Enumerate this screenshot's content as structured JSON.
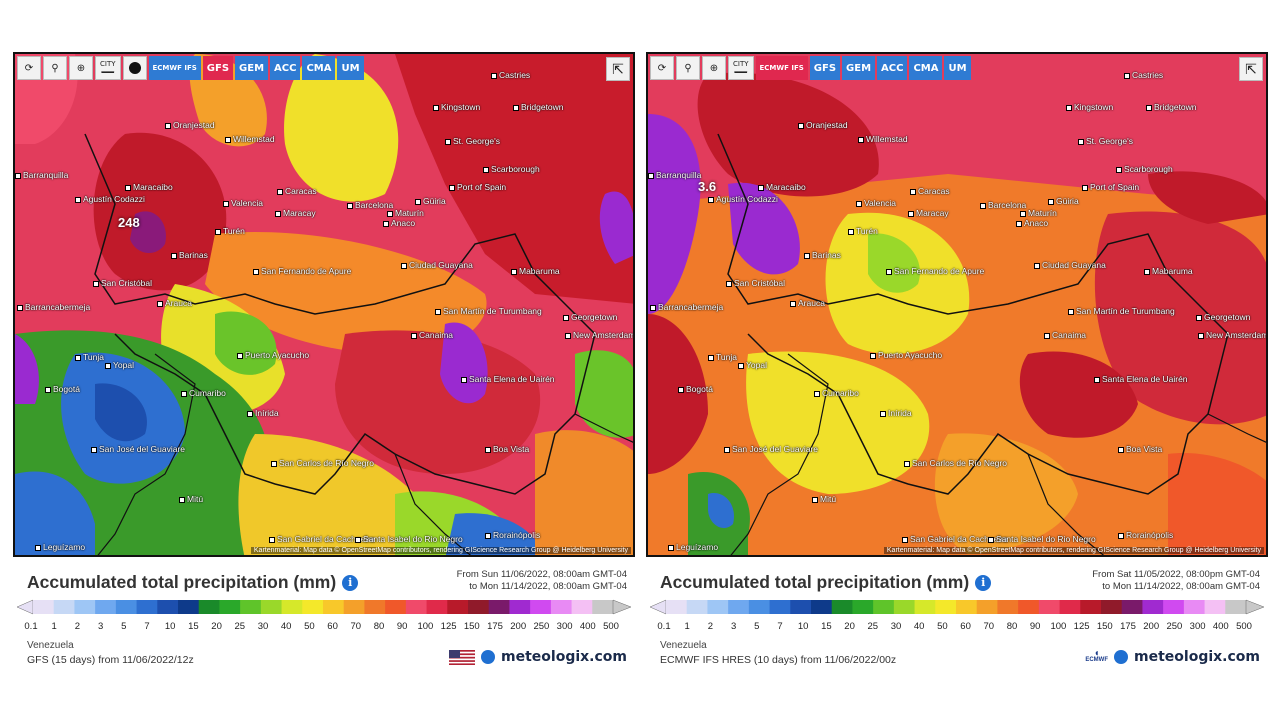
{
  "panels": [
    {
      "id": "gfs",
      "toolbar": {
        "refresh_icon": "refresh-icon",
        "location_icon": "map-pin-icon",
        "zoom_icon": "zoom-icon",
        "city_label": "CITY",
        "dot_icon": "black-dot-icon",
        "models": [
          {
            "label": "ECMWF IFS",
            "active": false
          },
          {
            "label": "GFS",
            "active": true
          },
          {
            "label": "GEM",
            "active": false
          },
          {
            "label": "ACC",
            "active": false
          },
          {
            "label": "CMA",
            "active": false
          },
          {
            "label": "UM",
            "active": false
          }
        ]
      },
      "max_value": "248",
      "cities": [
        "Castries",
        "Kingstown",
        "Bridgetown",
        "Oranjestad",
        "Willemstad",
        "St. George's",
        "Scarborough",
        "Barranquilla",
        "Maracaibo",
        "Caracas",
        "Port of Spain",
        "Agustín Codazzi",
        "Valencia",
        "Maracay",
        "Barcelona",
        "Güiria",
        "Maturín",
        "Turén",
        "Anaco",
        "Barinas",
        "Ciudad Guayana",
        "San Fernando de Apure",
        "Mabaruma",
        "San Cristóbal",
        "Arauca",
        "Barrancabermeja",
        "San Martín de Turumbang",
        "Georgetown",
        "New Amsterdam",
        "Canaima",
        "Puerto Ayacucho",
        "Tunja",
        "Yopal",
        "Santa Elena de Uairén",
        "Bogotá",
        "Cumaribo",
        "Inírida",
        "San José del Guaviare",
        "Boa Vista",
        "San Carlos de Río Negro",
        "Mitú",
        "Rorainópolis",
        "San Gabriel da Cachoeira",
        "Santa Isabel do Rio Negro",
        "Leguízamo"
      ],
      "attribution": "Kartenmaterial: Map data © OpenStreetMap contributors, rendering GIScience Research Group @ Heidelberg University",
      "title": "Accumulated total precipitation (mm)",
      "date_from": "From Sun 11/06/2022, 08:00am GMT-04",
      "date_to": "to Mon 11/14/2022, 08:00am GMT-04",
      "region": "Venezuela",
      "model_line": "GFS (15 days) from 11/06/2022/12z",
      "brand": "meteologix.com",
      "logo": "us-flag"
    },
    {
      "id": "ecmwf",
      "toolbar": {
        "refresh_icon": "refresh-icon",
        "location_icon": "map-pin-icon",
        "zoom_icon": "zoom-icon",
        "city_label": "CITY",
        "models": [
          {
            "label": "ECMWF IFS",
            "active": true
          },
          {
            "label": "GFS",
            "active": false
          },
          {
            "label": "GEM",
            "active": false
          },
          {
            "label": "ACC",
            "active": false
          },
          {
            "label": "CMA",
            "active": false
          },
          {
            "label": "UM",
            "active": false
          }
        ]
      },
      "max_value": "3.6",
      "cities": [
        "Castries",
        "Kingstown",
        "Bridgetown",
        "Oranjestad",
        "Willemstad",
        "St. George's",
        "Scarborough",
        "Barranquilla",
        "Maracaibo",
        "Caracas",
        "Port of Spain",
        "Agustín Codazzi",
        "Valencia",
        "Maracay",
        "Barcelona",
        "Güiria",
        "Maturín",
        "Turén",
        "Anaco",
        "Barinas",
        "Ciudad Guayana",
        "San Fernando de Apure",
        "Mabaruma",
        "San Cristóbal",
        "Arauca",
        "Barrancabermeja",
        "San Martín de Turumbang",
        "Georgetown",
        "New Amsterdam",
        "Canaima",
        "Puerto Ayacucho",
        "Tunja",
        "Yopal",
        "Santa Elena de Uairén",
        "Bogotá",
        "Cumaribo",
        "Inírida",
        "San José del Guaviare",
        "Boa Vista",
        "San Carlos de Río Negro",
        "Mitú",
        "Rorainópolis",
        "San Gabriel da Cachoeira",
        "Santa Isabel do Rio Negro",
        "Leguízamo"
      ],
      "attribution": "Kartenmaterial: Map data © OpenStreetMap contributors, rendering GIScience Research Group @ Heidelberg University",
      "title": "Accumulated total precipitation (mm)",
      "date_from": "From Sat 11/05/2022, 08:00pm GMT-04",
      "date_to": "to Mon 11/14/2022, 08:00am GMT-04",
      "region": "Venezuela",
      "model_line": "ECMWF IFS HRES (10 days) from 11/06/2022/00z",
      "brand": "meteologix.com",
      "logo_text": "ECMWF"
    }
  ],
  "legend": {
    "ticks": [
      "0.1",
      "1",
      "2",
      "3",
      "5",
      "7",
      "10",
      "15",
      "20",
      "25",
      "30",
      "40",
      "50",
      "60",
      "70",
      "80",
      "90",
      "100",
      "125",
      "150",
      "175",
      "200",
      "250",
      "300",
      "400",
      "500"
    ],
    "colors": [
      "#e6e0f5",
      "#c6d8f5",
      "#9ec6f5",
      "#6fa8ef",
      "#4a8fe3",
      "#2e6fd0",
      "#1d4fae",
      "#0e3a8a",
      "#1a8a2a",
      "#2aa82a",
      "#5fc42a",
      "#9ad82a",
      "#d6e82a",
      "#f4e82a",
      "#f8c82a",
      "#f4a02a",
      "#f0782a",
      "#f0582a",
      "#f04a6a",
      "#e02a4a",
      "#b81a2a",
      "#901a2a",
      "#7a1a6a",
      "#a02ad0",
      "#d04af0",
      "#e88af4",
      "#f4c0f4",
      "#c8c8c8"
    ]
  },
  "colors": {
    "model_button": "#2f7bd3",
    "active_model_button": "#e0284f",
    "brand_text": "#1a2a4a",
    "info_icon": "#1f6fd1"
  }
}
